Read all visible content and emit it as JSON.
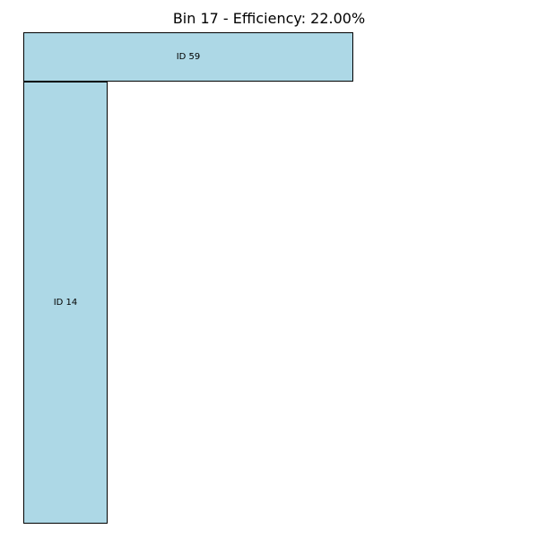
{
  "title": "Bin 17 - Efficiency: 22.00%",
  "colors": {
    "item_fill": "#add8e6",
    "item_border": "#000000",
    "background": "#ffffff"
  },
  "items": [
    {
      "label": "ID 59"
    },
    {
      "label": "ID 14"
    }
  ]
}
